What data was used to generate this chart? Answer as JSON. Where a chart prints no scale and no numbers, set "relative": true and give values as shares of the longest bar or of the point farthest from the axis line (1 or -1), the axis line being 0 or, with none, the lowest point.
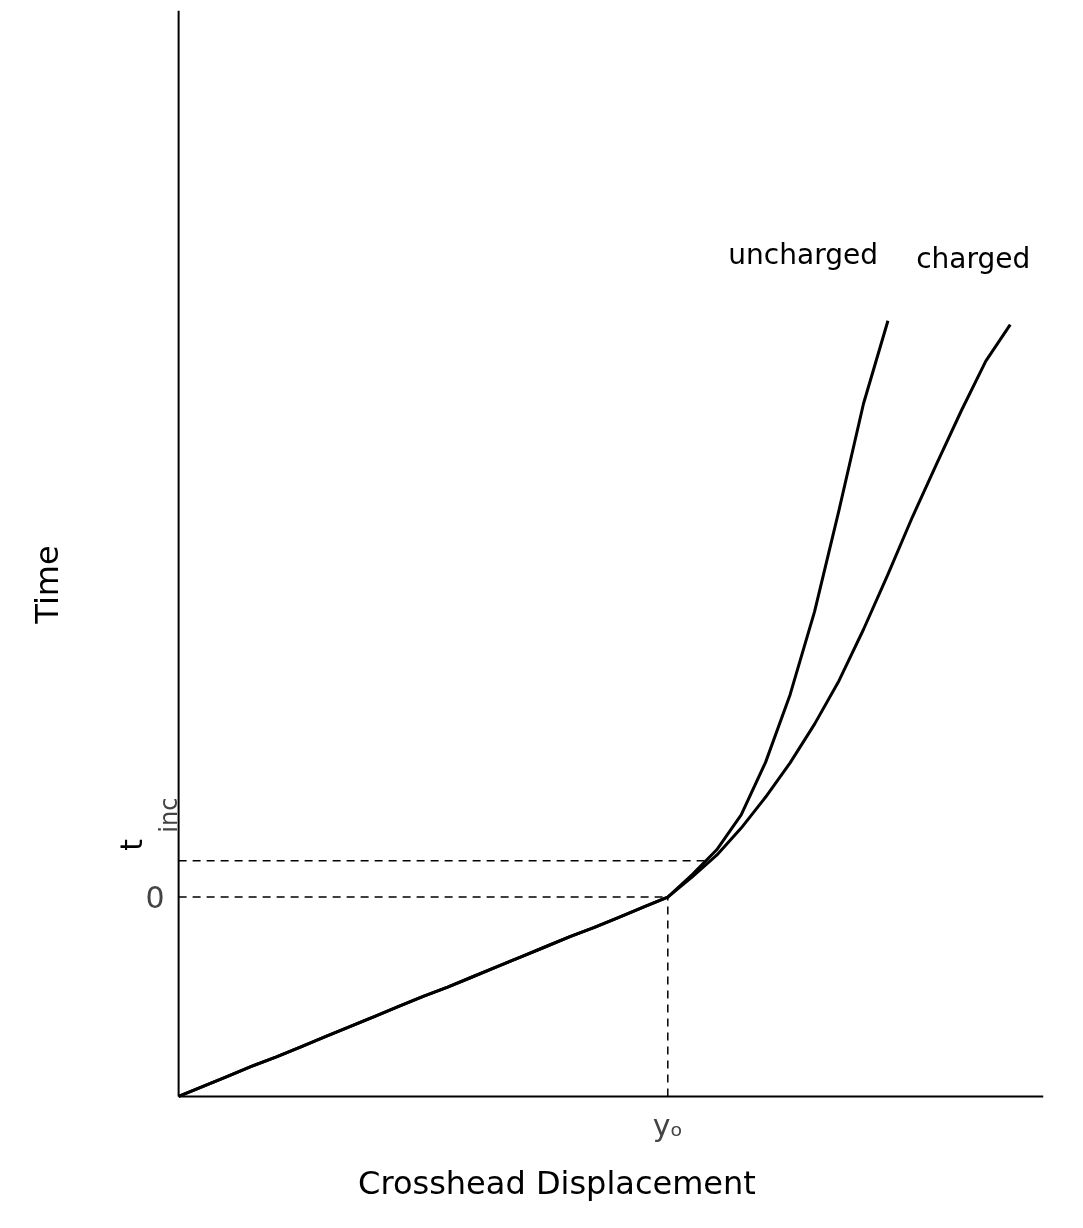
{
  "chart_data": {
    "type": "line",
    "relative": true,
    "xlabel": "Crosshead Displacement",
    "ylabel": "Time",
    "legend": false,
    "annotations": [
      "yₒ"
    ],
    "categories": [
      null,
      null,
      null,
      null,
      null,
      null,
      null,
      null,
      null,
      null,
      null,
      null,
      null,
      null,
      null,
      null,
      null,
      null,
      null,
      null,
      null,
      null,
      null,
      null,
      null,
      null,
      null,
      null,
      null,
      null,
      null,
      null,
      null,
      null,
      null
    ],
    "series": [
      {
        "name": "uncharged",
        "color": "#000000",
        "values": [
          0,
          0.013,
          0.026,
          0.039,
          0.051,
          0.064,
          0.077,
          0.09,
          0.103,
          0.116,
          0.129,
          0.141,
          0.154,
          0.167,
          0.18,
          0.193,
          0.206,
          0.218,
          0.231,
          0.244,
          0.257,
          0.286,
          0.318,
          0.363,
          0.431,
          0.518,
          0.625,
          0.756,
          0.893,
          1,
          null,
          null,
          null,
          null,
          null
        ]
      },
      {
        "name": "charged",
        "color": "#000000",
        "values": [
          0,
          0.013,
          0.026,
          0.039,
          0.051,
          0.064,
          0.077,
          0.09,
          0.103,
          0.116,
          0.129,
          0.141,
          0.154,
          0.167,
          0.18,
          0.193,
          0.206,
          0.218,
          0.231,
          0.244,
          0.257,
          0.283,
          0.311,
          0.346,
          0.386,
          0.43,
          0.48,
          0.536,
          0.602,
          0.673,
          0.747,
          0.816,
          0.884,
          0.948,
          0.995
        ]
      }
    ],
    "ref_lines": [
      {
        "axis": "y",
        "value": 0.257,
        "label": "0",
        "line_style": "dashed"
      },
      {
        "axis": "y",
        "value": 0.304,
        "label": "t$_{inc}$",
        "line_style": "dashed"
      }
    ]
  }
}
